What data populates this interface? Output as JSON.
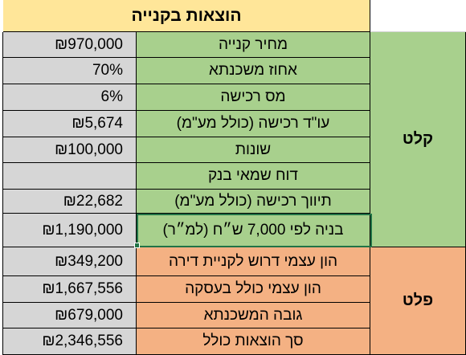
{
  "header": {
    "title": "הוצאות בקנייה"
  },
  "inputs_section": {
    "label": "קלט",
    "rows": [
      {
        "value": "₪970,000",
        "label": "מחיר קנייה"
      },
      {
        "value": "70%",
        "label": "אחוז משכנתא"
      },
      {
        "value": "6%",
        "label": "מס רכישה"
      },
      {
        "value": "₪5,674",
        "label": "עו\"ד רכישה (כולל מע\"מ)"
      },
      {
        "value": "₪100,000",
        "label": "שונות"
      },
      {
        "value": "",
        "label": "דוח שמאי בנק"
      },
      {
        "value": "₪22,682",
        "label": "תיווך רכישה (כולל מע\"מ)"
      },
      {
        "value": "₪1,190,000",
        "label": "בניה לפי 7,000 ש״ח (למ״ר)"
      }
    ]
  },
  "outputs_section": {
    "label": "פלט",
    "rows": [
      {
        "value": "₪349,200",
        "label": "הון עצמי דרוש לקניית דירה"
      },
      {
        "value": "₪1,667,556",
        "label": "הון עצמי כולל בעסקה"
      },
      {
        "value": "₪679,000",
        "label": "גובה המשכנתא"
      },
      {
        "value": "₪2,346,556",
        "label": "סך הוצאות כולל"
      }
    ]
  },
  "colors": {
    "header": "#ffe699",
    "input_section": "#a8d08d",
    "output_section": "#f4b183",
    "value_cells": "#d6d6d6",
    "selection": "#217346"
  }
}
